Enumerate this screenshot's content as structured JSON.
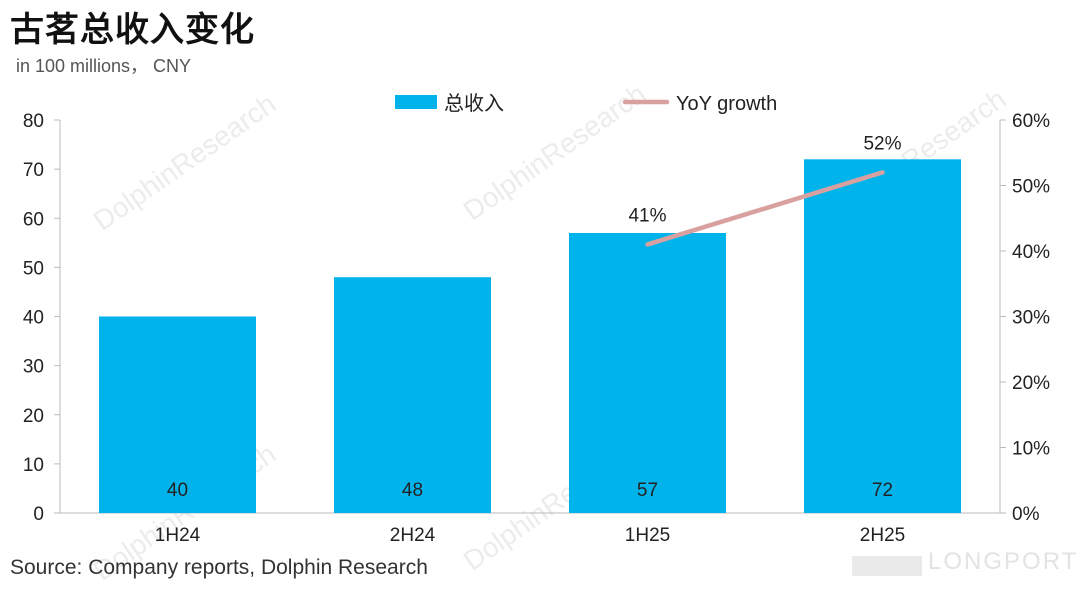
{
  "title": "古茗总收入变化",
  "subtitle": "in 100 millions， CNY",
  "source": "Source: Company reports, Dolphin Research",
  "watermark": "DolphinResearch",
  "brand": "LONGPORT",
  "chart_data": {
    "type": "bar",
    "categories": [
      "1H24",
      "2H24",
      "1H25",
      "2H25"
    ],
    "series": [
      {
        "name": "总收入",
        "type": "bar",
        "axis": "left",
        "color": "#00b4eb",
        "values": [
          40,
          48,
          57,
          72
        ],
        "data_labels": [
          "40",
          "48",
          "57",
          "72"
        ]
      },
      {
        "name": "YoY growth",
        "type": "line",
        "axis": "right",
        "color": "#d9a0a0",
        "values": [
          null,
          null,
          41,
          52
        ],
        "data_labels": [
          "",
          "",
          "41%",
          "52%"
        ]
      }
    ],
    "y_left": {
      "ylim": [
        0,
        80
      ],
      "ticks": [
        "0",
        "10",
        "20",
        "30",
        "40",
        "50",
        "60",
        "70",
        "80"
      ]
    },
    "y_right": {
      "ylim": [
        0,
        60
      ],
      "ticks": [
        "0%",
        "10%",
        "20%",
        "30%",
        "40%",
        "50%",
        "60%"
      ]
    },
    "grid": false,
    "legend_position": "top"
  }
}
